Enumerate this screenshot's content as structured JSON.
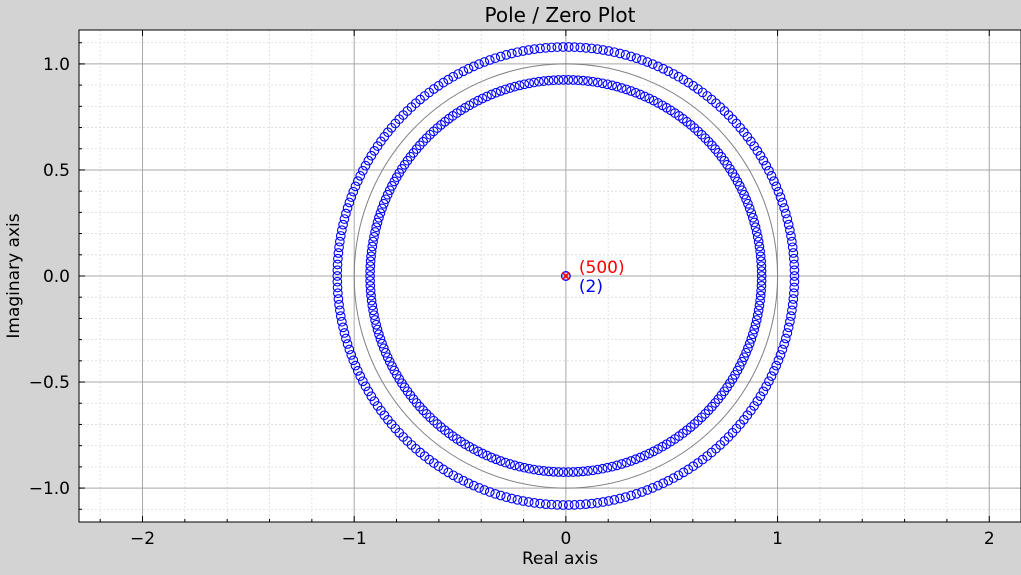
{
  "chart_data": {
    "type": "scatter",
    "title": "Pole / Zero Plot",
    "xlabel": "Real axis",
    "ylabel": "Imaginary axis",
    "xlim": [
      -2.3,
      2.15
    ],
    "ylim": [
      -1.16,
      1.16
    ],
    "xticks": [
      -2,
      -1,
      0,
      1,
      2
    ],
    "xtick_labels": [
      "−2",
      "−1",
      "0",
      "1",
      "2"
    ],
    "yticks": [
      1.0,
      0.5,
      0.0,
      -0.5,
      -1.0
    ],
    "ytick_labels": [
      "1.0",
      "0.5",
      "0.0",
      "−0.5",
      "−1.0"
    ],
    "grid": true,
    "minor_grid": true,
    "unit_circle": true,
    "series": [
      {
        "marker": "o",
        "filled": false,
        "color": "#0000ff",
        "ring_radius": 1.08,
        "count": 250,
        "annotation": "(2)",
        "annotation_at": [
          0,
          0
        ]
      },
      {
        "marker": "o",
        "filled": false,
        "color": "#0000ff",
        "ring_radius": 0.925,
        "count": 250
      },
      {
        "marker": "x",
        "color": "#ff0000",
        "point": [
          0,
          0
        ],
        "multiplicity": 500,
        "annotation": "(500)",
        "annotation_at": [
          0,
          0
        ]
      }
    ],
    "colors": {
      "zeros": "#0000ff",
      "poles": "#ff0000",
      "unit_circle": "#808080",
      "major_grid": "#a9a9a9",
      "minor_grid": "#dcdcdc",
      "frame_background": "#d3d3d3",
      "plot_background": "#ffffff"
    }
  }
}
